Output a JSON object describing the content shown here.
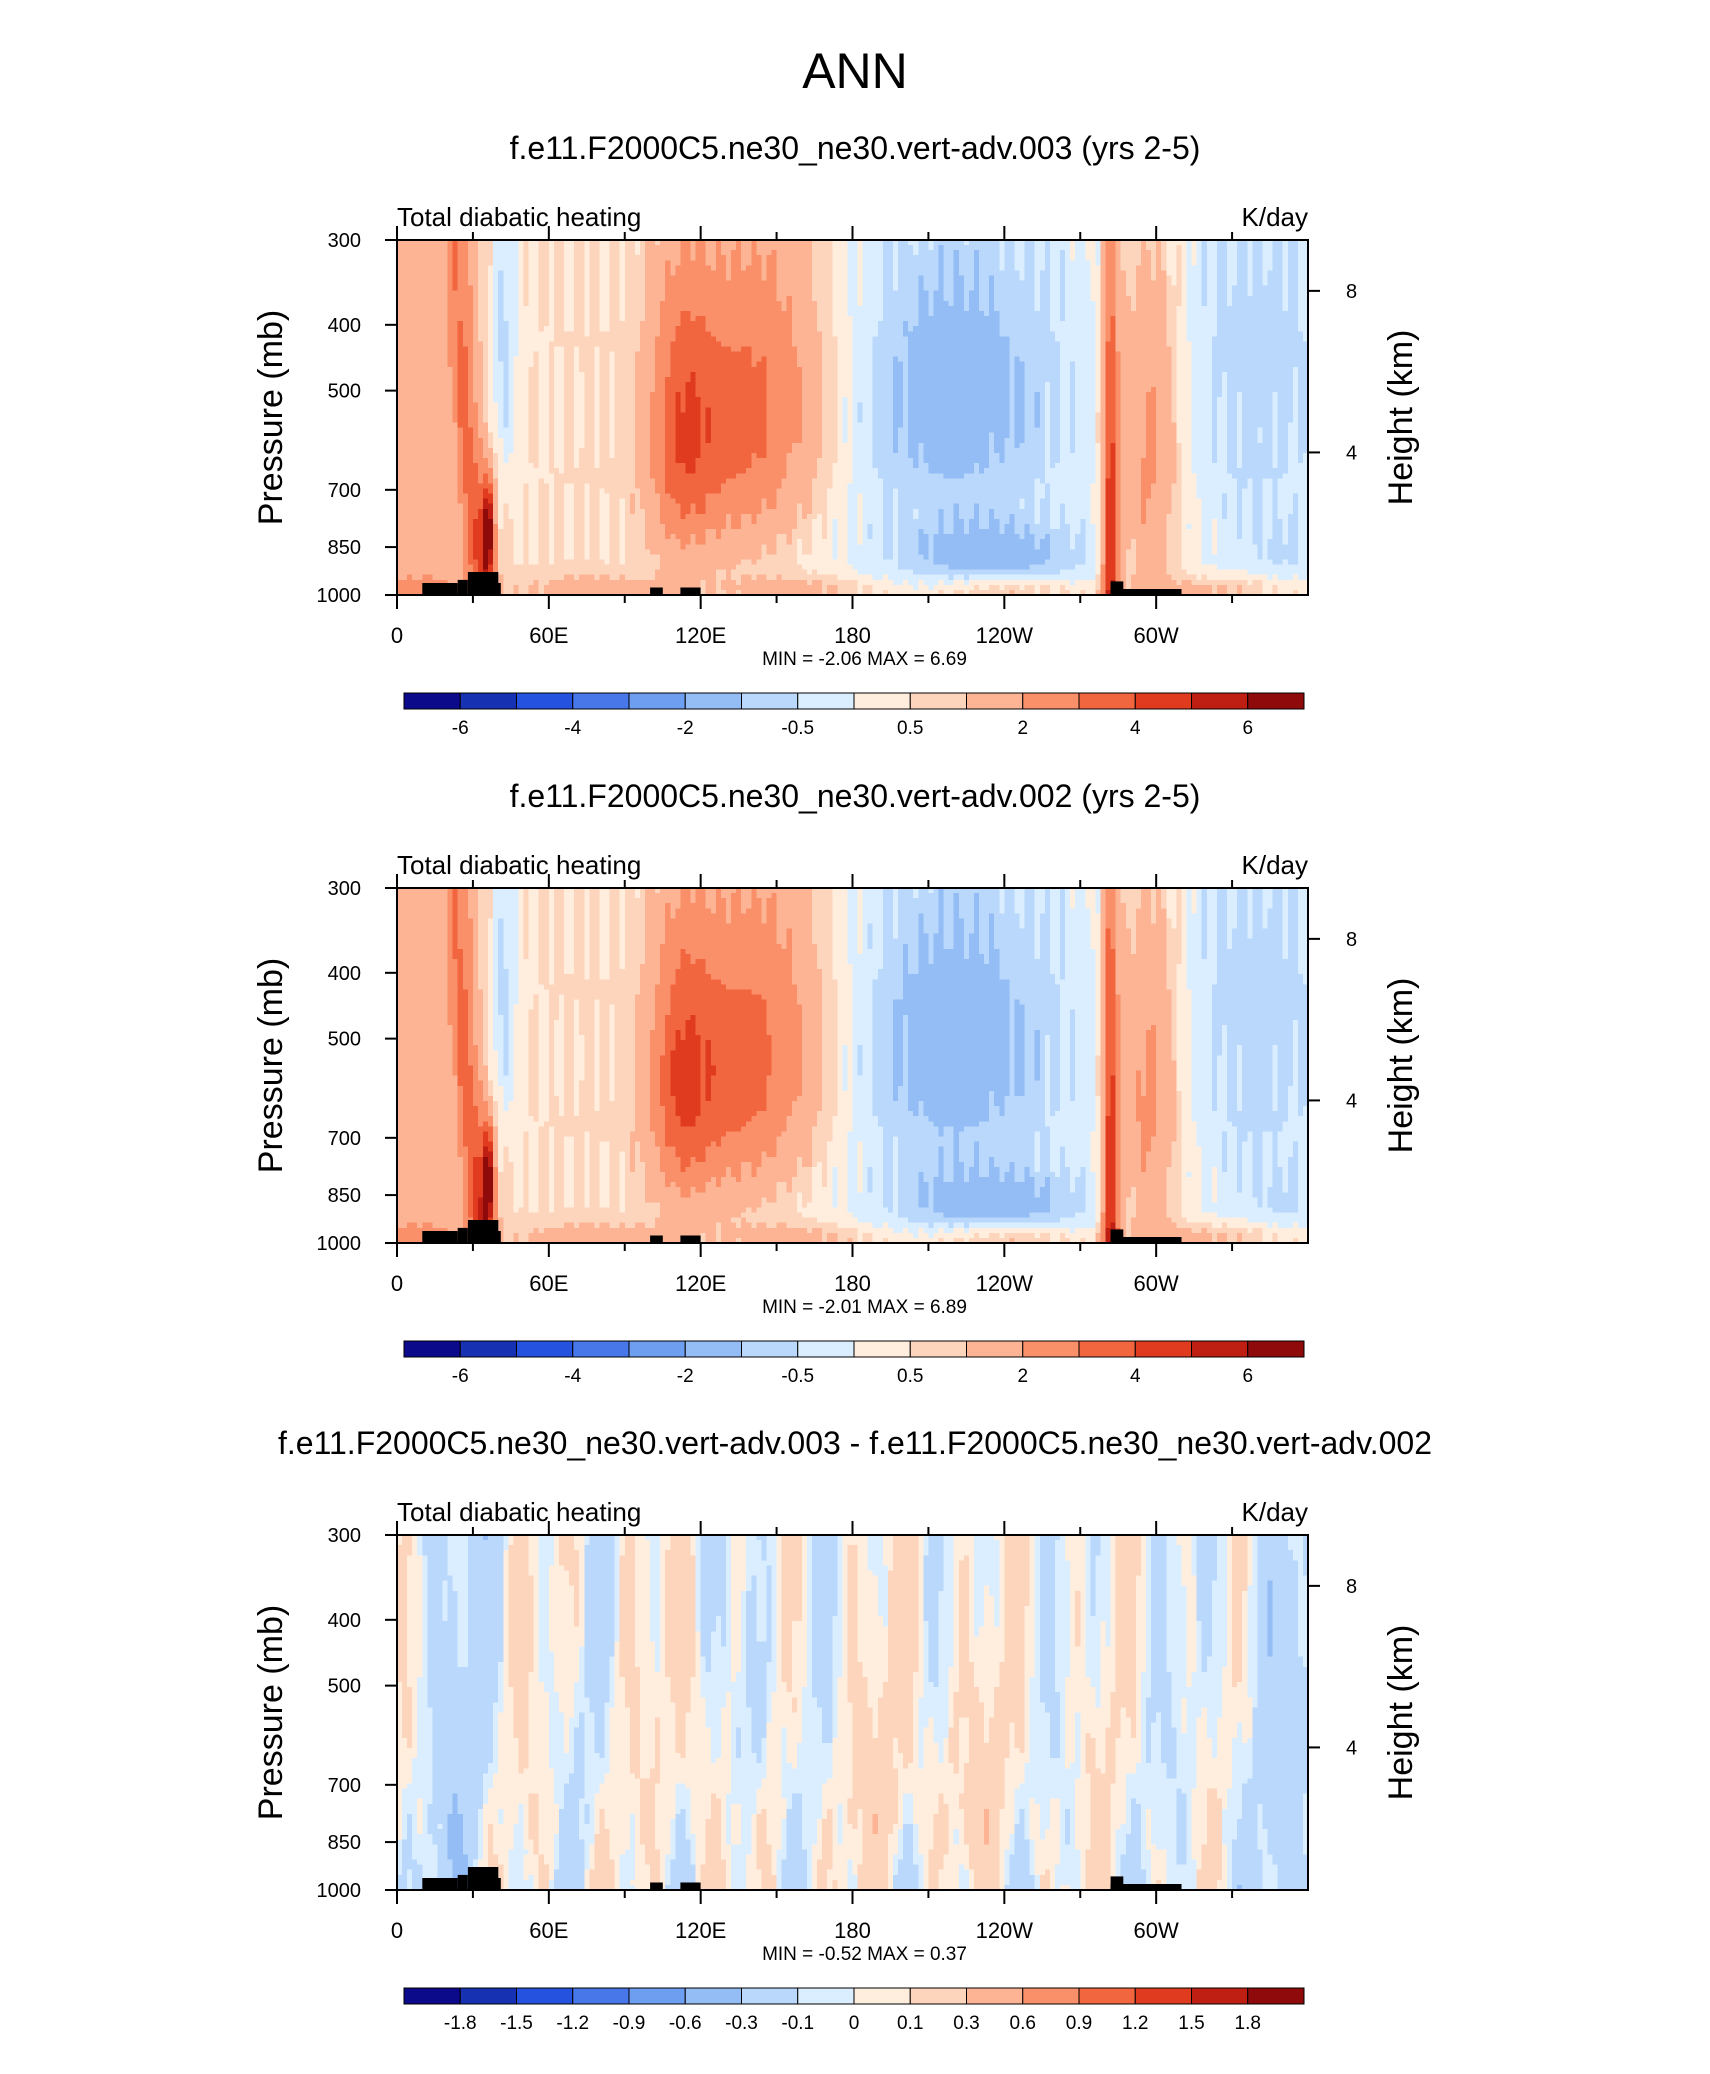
{
  "main_title": "ANN",
  "colors": {
    "warm": [
      "#ffeedd",
      "#fdd4bc",
      "#fcb494",
      "#f99069",
      "#f2663f",
      "#e03b1e",
      "#bf1e12",
      "#8f0a0a"
    ],
    "cool": [
      "#dbeeff",
      "#b9d8fb",
      "#94bdf6",
      "#6e9ef0",
      "#4777e8",
      "#2552de",
      "#1632b2",
      "#0a0a8a"
    ],
    "land": "#000000"
  },
  "chart_data": [
    {
      "type": "heatmap",
      "title": "f.e11.F2000C5.ne30_ne30.vert-adv.003 (yrs 2-5)",
      "left_label": "Total diabatic heating",
      "right_label": "K/day",
      "ylabel": "Pressure (mb)",
      "y2label": "Height (km)",
      "y_ticks": [
        "300",
        "400",
        "500",
        "700",
        "850",
        "1000"
      ],
      "y2_ticks": [
        "8",
        "4"
      ],
      "x_ticks": [
        "0",
        "60E",
        "120E",
        "180",
        "120W",
        "60W"
      ],
      "xlim": [
        0,
        360
      ],
      "stats": "MIN =  -2.06  MAX =   6.69",
      "colorbar_labels": [
        "-6",
        "-4",
        "-2",
        "-0.5",
        "0.5",
        "2",
        "4",
        "6"
      ],
      "field": "full",
      "scale": 1.0
    },
    {
      "type": "heatmap",
      "title": "f.e11.F2000C5.ne30_ne30.vert-adv.002 (yrs 2-5)",
      "left_label": "Total diabatic heating",
      "right_label": "K/day",
      "ylabel": "Pressure (mb)",
      "y2label": "Height (km)",
      "y_ticks": [
        "300",
        "400",
        "500",
        "700",
        "850",
        "1000"
      ],
      "y2_ticks": [
        "8",
        "4"
      ],
      "x_ticks": [
        "0",
        "60E",
        "120E",
        "180",
        "120W",
        "60W"
      ],
      "xlim": [
        0,
        360
      ],
      "stats": "MIN =  -2.01  MAX =   6.89",
      "colorbar_labels": [
        "-6",
        "-4",
        "-2",
        "-0.5",
        "0.5",
        "2",
        "4",
        "6"
      ],
      "field": "full",
      "scale": 1.03
    },
    {
      "type": "heatmap",
      "title": "f.e11.F2000C5.ne30_ne30.vert-adv.003 - f.e11.F2000C5.ne30_ne30.vert-adv.002",
      "left_label": "Total diabatic heating",
      "right_label": "K/day",
      "ylabel": "Pressure (mb)",
      "y2label": "Height (km)",
      "y_ticks": [
        "300",
        "400",
        "500",
        "700",
        "850",
        "1000"
      ],
      "y2_ticks": [
        "8",
        "4"
      ],
      "x_ticks": [
        "0",
        "60E",
        "120E",
        "180",
        "120W",
        "60W"
      ],
      "xlim": [
        0,
        360
      ],
      "stats": "MIN =  -0.52  MAX =   0.37",
      "colorbar_labels": [
        "-1.8",
        "-1.5",
        "-1.2",
        "-0.9",
        "-0.6",
        "-0.3",
        "-0.1",
        "0",
        "0.1",
        "0.3",
        "0.6",
        "0.9",
        "1.2",
        "1.5",
        "1.8"
      ],
      "field": "diff",
      "scale": 1.0
    }
  ]
}
